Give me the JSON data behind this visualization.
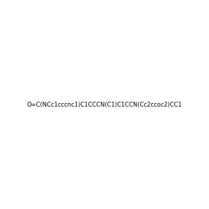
{
  "smiles": "O=C(NCc1cccnc1)C1CCCN(C1)C1CCN(Cc2ccoc2)CC1",
  "image_size": 300,
  "background_color": "#e8e8e8",
  "title": ""
}
